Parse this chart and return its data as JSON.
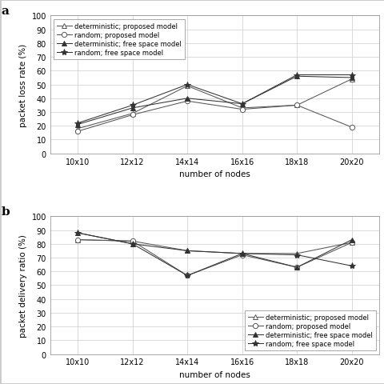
{
  "x_labels": [
    "10x10",
    "12x12",
    "14x14",
    "16x16",
    "18x18",
    "20x20"
  ],
  "x_positions": [
    0,
    1,
    2,
    3,
    4,
    5
  ],
  "panel_a": {
    "title": "a",
    "ylabel": "packet loss rate (%)",
    "xlabel": "number of nodes",
    "ylim": [
      0,
      100
    ],
    "yticks": [
      0,
      10,
      20,
      30,
      40,
      50,
      60,
      70,
      80,
      90,
      100
    ],
    "series": [
      {
        "label": "deterministic; proposed model",
        "values": [
          18,
          29,
          49,
          33,
          35,
          54
        ],
        "marker": "^",
        "marker_fill": "white",
        "color": "#555555",
        "linestyle": "-",
        "markersize": 4.5
      },
      {
        "label": "random; proposed model",
        "values": [
          16,
          28,
          38,
          32,
          35,
          19
        ],
        "marker": "o",
        "marker_fill": "white",
        "color": "#555555",
        "linestyle": "-",
        "markersize": 4.5
      },
      {
        "label": "deterministic; free space model",
        "values": [
          21,
          33,
          40,
          36,
          56,
          55
        ],
        "marker": "^",
        "marker_fill": "#333333",
        "color": "#333333",
        "linestyle": "-",
        "markersize": 4.5
      },
      {
        "label": "random; free space model",
        "values": [
          22,
          35,
          50,
          36,
          57,
          57
        ],
        "marker": "*",
        "marker_fill": "#333333",
        "color": "#333333",
        "linestyle": "-",
        "markersize": 6
      }
    ]
  },
  "panel_b": {
    "title": "b",
    "ylabel": "packet delivery ratio (%)",
    "xlabel": "number of nodes",
    "ylim": [
      0,
      100
    ],
    "yticks": [
      0,
      10,
      20,
      30,
      40,
      50,
      60,
      70,
      80,
      90,
      100
    ],
    "series": [
      {
        "label": "deterministic; proposed model",
        "values": [
          83,
          82,
          75,
          73,
          73,
          81
        ],
        "marker": "^",
        "marker_fill": "white",
        "color": "#555555",
        "linestyle": "-",
        "markersize": 4.5
      },
      {
        "label": "random; proposed model",
        "values": [
          83,
          82,
          57,
          72,
          63,
          81
        ],
        "marker": "o",
        "marker_fill": "white",
        "color": "#555555",
        "linestyle": "-",
        "markersize": 4.5
      },
      {
        "label": "deterministic; free space model",
        "values": [
          88,
          80,
          75,
          73,
          63,
          83
        ],
        "marker": "^",
        "marker_fill": "#333333",
        "color": "#333333",
        "linestyle": "-",
        "markersize": 4.5
      },
      {
        "label": "random; free space model",
        "values": [
          88,
          80,
          57,
          73,
          72,
          64
        ],
        "marker": "*",
        "marker_fill": "#333333",
        "color": "#333333",
        "linestyle": "-",
        "markersize": 6
      }
    ]
  },
  "legend_fontsize": 6.0,
  "axis_fontsize": 7.5,
  "tick_fontsize": 7,
  "panel_label_fontsize": 11,
  "background_color": "#ffffff",
  "grid_color": "#cccccc",
  "line_width": 0.75,
  "figure_border_color": "#cccccc"
}
